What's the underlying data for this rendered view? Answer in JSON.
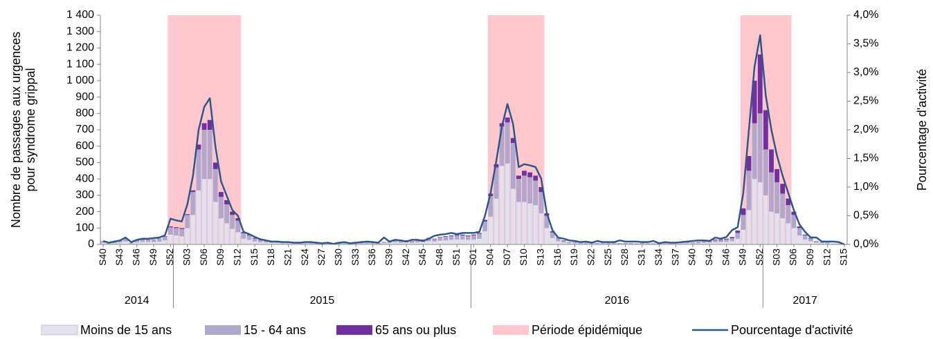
{
  "chart_data": {
    "type": "bar",
    "stacked": true,
    "ylabel": [
      "Nombre de passages aux urgences",
      "pour syndrome grippal"
    ],
    "y2label": "Pourcentage d'activité",
    "ylim": [
      0,
      1400
    ],
    "yticks": [
      0,
      100,
      200,
      300,
      400,
      500,
      600,
      700,
      800,
      900,
      {
        "value": 1000,
        "label": "1 000"
      },
      {
        "value": 1100,
        "label": "1 100"
      },
      {
        "value": 1200,
        "label": "1 200"
      },
      {
        "value": 1300,
        "label": "1 300"
      },
      {
        "value": 1400,
        "label": "1 400"
      }
    ],
    "y2lim": [
      0,
      4
    ],
    "y2ticks": [
      {
        "value": 0,
        "label": "0,0%"
      },
      {
        "value": 0.5,
        "label": "0,5%"
      },
      {
        "value": 1,
        "label": "1,0%"
      },
      {
        "value": 1.5,
        "label": "1,5%"
      },
      {
        "value": 2,
        "label": "2,0%"
      },
      {
        "value": 2.5,
        "label": "2,5%"
      },
      {
        "value": 3,
        "label": "3,0%"
      },
      {
        "value": 3.5,
        "label": "3,5%"
      },
      {
        "value": 4,
        "label": "4,0%"
      }
    ],
    "x_groups": [
      "2014",
      "2015",
      "2016",
      "2017"
    ],
    "categories": [
      "S40",
      null,
      null,
      "S43",
      null,
      null,
      "S46",
      null,
      null,
      "S49",
      null,
      null,
      "S52",
      null,
      null,
      "S03",
      null,
      null,
      "S06",
      null,
      null,
      "S09",
      null,
      null,
      "S12",
      null,
      null,
      "S15",
      null,
      null,
      "S18",
      null,
      null,
      "S21",
      null,
      null,
      "S24",
      null,
      null,
      "S27",
      null,
      null,
      "S30",
      null,
      null,
      "S33",
      null,
      null,
      "S36",
      null,
      null,
      "S39",
      null,
      null,
      "S42",
      null,
      null,
      "S45",
      null,
      null,
      "S48",
      null,
      null,
      "S51",
      null,
      null,
      "S01",
      null,
      null,
      "S04",
      null,
      null,
      "S07",
      null,
      null,
      "S10",
      null,
      null,
      "S13",
      null,
      null,
      "S16",
      null,
      null,
      "S19",
      null,
      null,
      "S22",
      null,
      null,
      "S25",
      null,
      null,
      "S28",
      null,
      null,
      "S31",
      null,
      null,
      "S34",
      null,
      null,
      "S37",
      null,
      null,
      "S40",
      null,
      null,
      "S43",
      null,
      null,
      "S46",
      null,
      null,
      "S49",
      null,
      null,
      "S52",
      null,
      null,
      "S03",
      null,
      null,
      "S06",
      null,
      null,
      "S09",
      null,
      null,
      "S12",
      null,
      null,
      "S15"
    ],
    "series": [
      {
        "name": "Moins de 15 ans",
        "type": "bar",
        "color": "#e4e0ee",
        "values": [
          10,
          5,
          8,
          12,
          18,
          5,
          12,
          15,
          15,
          15,
          18,
          25,
          60,
          55,
          50,
          100,
          180,
          330,
          400,
          400,
          260,
          160,
          130,
          95,
          75,
          35,
          28,
          18,
          14,
          12,
          10,
          10,
          7,
          7,
          5,
          5,
          6,
          5,
          4,
          5,
          4,
          3,
          4,
          5,
          3,
          4,
          5,
          6,
          5,
          4,
          8,
          10,
          13,
          10,
          13,
          10,
          13,
          15,
          20,
          18,
          23,
          25,
          28,
          30,
          30,
          28,
          30,
          35,
          80,
          170,
          280,
          480,
          495,
          340,
          260,
          260,
          250,
          240,
          190,
          100,
          40,
          20,
          12,
          7,
          7,
          6,
          5,
          5,
          4,
          5,
          4,
          5,
          4,
          4,
          4,
          3,
          4,
          3,
          3,
          4,
          5,
          6,
          7,
          7,
          7,
          6,
          7,
          10,
          12,
          14,
          14,
          16,
          20,
          35,
          90,
          210,
          400,
          380,
          300,
          200,
          190,
          160,
          130,
          100,
          55,
          30,
          20,
          10,
          8,
          5,
          3,
          3,
          2
        ]
      },
      {
        "name": "15 - 64 ans",
        "type": "bar",
        "color": "#b1a7cc",
        "values": [
          8,
          4,
          6,
          11,
          15,
          4,
          11,
          13,
          13,
          13,
          15,
          22,
          45,
          45,
          45,
          80,
          140,
          250,
          300,
          300,
          200,
          130,
          115,
          85,
          70,
          33,
          27,
          18,
          13,
          11,
          8,
          8,
          7,
          7,
          4,
          4,
          5,
          4,
          3,
          4,
          3,
          2,
          3,
          4,
          2,
          3,
          4,
          5,
          4,
          3,
          6,
          8,
          10,
          8,
          10,
          8,
          10,
          13,
          17,
          14,
          19,
          21,
          23,
          25,
          25,
          23,
          25,
          30,
          60,
          125,
          190,
          240,
          250,
          280,
          140,
          160,
          160,
          150,
          130,
          75,
          33,
          17,
          11,
          7,
          7,
          5,
          4,
          4,
          3,
          4,
          3,
          4,
          3,
          3,
          3,
          2,
          3,
          2,
          2,
          3,
          4,
          5,
          6,
          6,
          6,
          5,
          6,
          8,
          10,
          12,
          12,
          14,
          18,
          35,
          90,
          240,
          340,
          420,
          280,
          240,
          190,
          150,
          110,
          80,
          45,
          25,
          16,
          8,
          6,
          4,
          2,
          2,
          1
        ]
      },
      {
        "name": "65 ans ou plus",
        "type": "bar",
        "color": "#7030a0",
        "values": [
          2,
          1,
          1,
          2,
          2,
          1,
          2,
          2,
          2,
          2,
          2,
          3,
          5,
          5,
          5,
          5,
          10,
          30,
          40,
          60,
          40,
          30,
          25,
          20,
          15,
          7,
          5,
          4,
          3,
          2,
          2,
          2,
          1,
          1,
          1,
          1,
          1,
          1,
          1,
          1,
          1,
          1,
          1,
          1,
          1,
          1,
          1,
          1,
          1,
          1,
          1,
          2,
          2,
          2,
          2,
          2,
          2,
          2,
          3,
          3,
          3,
          4,
          4,
          5,
          5,
          4,
          5,
          5,
          10,
          15,
          20,
          20,
          30,
          30,
          20,
          30,
          30,
          30,
          30,
          15,
          7,
          3,
          2,
          1,
          1,
          1,
          1,
          1,
          1,
          1,
          1,
          1,
          1,
          1,
          1,
          1,
          1,
          1,
          1,
          1,
          1,
          1,
          2,
          2,
          2,
          1,
          2,
          2,
          3,
          4,
          4,
          5,
          7,
          15,
          40,
          90,
          260,
          360,
          240,
          140,
          80,
          60,
          40,
          20,
          10,
          5,
          4,
          2,
          1,
          1,
          0,
          0,
          0
        ]
      },
      {
        "name": "Période épidémique",
        "type": "band",
        "color": "#ffc7ce",
        "values": [
          null,
          null,
          null,
          null,
          null,
          null,
          null,
          null,
          null,
          null,
          null,
          null,
          1400,
          1400,
          1400,
          1400,
          1400,
          1400,
          1400,
          1400,
          1400,
          1400,
          1400,
          1400,
          1400,
          null,
          null,
          null,
          null,
          null,
          null,
          null,
          null,
          null,
          null,
          null,
          null,
          null,
          null,
          null,
          null,
          null,
          null,
          null,
          null,
          null,
          null,
          null,
          null,
          null,
          null,
          null,
          null,
          null,
          null,
          null,
          null,
          null,
          null,
          null,
          null,
          null,
          null,
          null,
          null,
          null,
          null,
          null,
          null,
          1400,
          1400,
          1400,
          1400,
          1400,
          1400,
          1400,
          1400,
          1400,
          1400,
          null,
          null,
          null,
          null,
          null,
          null,
          null,
          null,
          null,
          null,
          null,
          null,
          null,
          null,
          null,
          null,
          null,
          null,
          null,
          null,
          null,
          null,
          null,
          null,
          null,
          null,
          null,
          null,
          null,
          null,
          null,
          null,
          null,
          null,
          null,
          1400,
          1400,
          1400,
          1400,
          1400,
          1400,
          1400,
          1400,
          1400,
          null,
          null,
          null,
          null,
          null,
          null,
          null,
          null,
          null,
          null
        ]
      },
      {
        "name": "Pourcentage d'activité",
        "type": "line",
        "axis": "y2",
        "color": "#2f5689",
        "values": [
          0.06,
          0.03,
          0.05,
          0.07,
          0.12,
          0.04,
          0.08,
          0.1,
          0.1,
          0.11,
          0.12,
          0.16,
          0.45,
          0.42,
          0.4,
          0.7,
          1.2,
          2.0,
          2.4,
          2.55,
          1.7,
          1.1,
          0.85,
          0.6,
          0.5,
          0.22,
          0.18,
          0.13,
          0.09,
          0.07,
          0.05,
          0.05,
          0.04,
          0.04,
          0.03,
          0.03,
          0.04,
          0.04,
          0.03,
          0.02,
          0.03,
          0.01,
          0.03,
          0.04,
          0.02,
          0.03,
          0.04,
          0.05,
          0.04,
          0.03,
          0.12,
          0.05,
          0.08,
          0.07,
          0.05,
          0.08,
          0.08,
          0.06,
          0.1,
          0.15,
          0.17,
          0.18,
          0.2,
          0.18,
          0.2,
          0.2,
          0.2,
          0.22,
          0.5,
          0.9,
          1.45,
          2.05,
          2.45,
          2.1,
          1.35,
          1.4,
          1.38,
          1.35,
          1.15,
          0.55,
          0.25,
          0.12,
          0.1,
          0.07,
          0.06,
          0.04,
          0.05,
          0.03,
          0.06,
          0.04,
          0.04,
          0.04,
          0.07,
          0.05,
          0.05,
          0.05,
          0.04,
          0.04,
          0.06,
          0.02,
          0.04,
          0.03,
          0.03,
          0.04,
          0.05,
          0.06,
          0.07,
          0.07,
          0.06,
          0.12,
          0.1,
          0.13,
          0.25,
          0.3,
          0.9,
          2.0,
          3.1,
          3.65,
          2.6,
          2.0,
          1.55,
          1.2,
          0.9,
          0.6,
          0.35,
          0.22,
          0.12,
          0.12,
          0.05,
          0.05,
          0.05,
          0.04,
          0.0
        ]
      }
    ]
  }
}
